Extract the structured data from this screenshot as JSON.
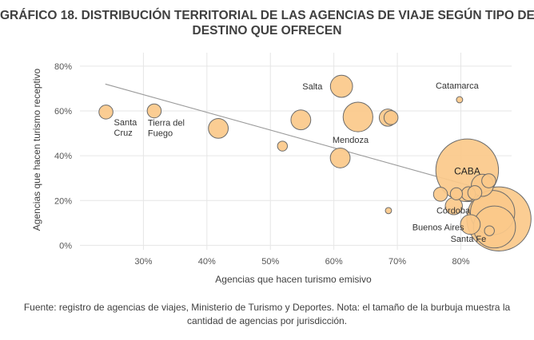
{
  "title_line1": "GRÁFICO 18. DISTRIBUCIÓN TERRITORIAL DE LAS AGENCIAS DE VIAJE SEGÚN TIPO DE",
  "title_line2": "DESTINO QUE OFRECEN",
  "source_line1": "Fuente: registro de agencias de viajes, Ministerio de Turismo y Deportes. Nota: el tamaño de la burbuja muestra la",
  "source_line2": "cantidad de agencias por jurisdicción.",
  "chart_data": {
    "type": "scatter",
    "subtype": "bubble",
    "xlabel": "Agencias que hacen turismo emisivo",
    "ylabel": "Agencias que hacen turismo receptivo",
    "xlim": [
      0.2,
      0.88
    ],
    "ylim": [
      -0.02,
      0.86
    ],
    "x_ticks": [
      0.3,
      0.4,
      0.5,
      0.6,
      0.7,
      0.8
    ],
    "x_tick_labels": [
      "30%",
      "40%",
      "50%",
      "60%",
      "70%",
      "80%"
    ],
    "y_ticks": [
      0.0,
      0.2,
      0.4,
      0.6,
      0.8
    ],
    "y_tick_labels": [
      "0%",
      "20%",
      "40%",
      "60%",
      "80%"
    ],
    "grid": "vertical and horizontal",
    "bubble_color": "#fbc98a",
    "bubble_stroke": "#6b6b6b",
    "trendline": {
      "color": "#9a9a9a",
      "x": [
        0.24,
        0.86
      ],
      "y": [
        0.72,
        0.23
      ]
    },
    "points": [
      {
        "x": 0.241,
        "y": 0.595,
        "size": 2,
        "label": "Santa\nCruz",
        "label_pos": "below-right"
      },
      {
        "x": 0.317,
        "y": 0.6,
        "size": 2,
        "label": "Tierra del\nFuego",
        "label_pos": "below"
      },
      {
        "x": 0.418,
        "y": 0.522,
        "size": 4,
        "label": ""
      },
      {
        "x": 0.519,
        "y": 0.443,
        "size": 1,
        "label": ""
      },
      {
        "x": 0.548,
        "y": 0.56,
        "size": 4,
        "label": ""
      },
      {
        "x": 0.612,
        "y": 0.71,
        "size": 5,
        "label": "Salta",
        "label_pos": "left"
      },
      {
        "x": 0.61,
        "y": 0.39,
        "size": 4,
        "label": ""
      },
      {
        "x": 0.638,
        "y": 0.573,
        "size": 9,
        "label": "Mendoza",
        "label_pos": "below"
      },
      {
        "x": 0.685,
        "y": 0.57,
        "size": 3,
        "label": ""
      },
      {
        "x": 0.69,
        "y": 0.57,
        "size": 2,
        "label": ""
      },
      {
        "x": 0.686,
        "y": 0.155,
        "size": 0.4,
        "label": ""
      },
      {
        "x": 0.798,
        "y": 0.65,
        "size": 0.4,
        "label": "Catamarca",
        "label_pos": "above"
      },
      {
        "x": 0.768,
        "y": 0.228,
        "size": 2,
        "label": ""
      },
      {
        "x": 0.793,
        "y": 0.23,
        "size": 1.5,
        "label": ""
      },
      {
        "x": 0.789,
        "y": 0.175,
        "size": 3,
        "label": ""
      },
      {
        "x": 0.812,
        "y": 0.23,
        "size": 2,
        "label": ""
      },
      {
        "x": 0.822,
        "y": 0.235,
        "size": 2,
        "label": ""
      },
      {
        "x": 0.834,
        "y": 0.268,
        "size": 5,
        "label": ""
      },
      {
        "x": 0.844,
        "y": 0.288,
        "size": 2,
        "label": ""
      },
      {
        "x": 0.81,
        "y": 0.335,
        "size": 40,
        "label": "CABA",
        "label_pos": "center"
      },
      {
        "x": 0.85,
        "y": 0.146,
        "size": 20,
        "label": "Córdoba",
        "label_pos": "left"
      },
      {
        "x": 0.86,
        "y": 0.118,
        "size": 42,
        "label": "",
        "label_pos": ""
      },
      {
        "x": 0.853,
        "y": 0.082,
        "size": 18,
        "label": "Buenos Aires",
        "label_pos": "left"
      },
      {
        "x": 0.815,
        "y": 0.093,
        "size": 4,
        "label": ""
      },
      {
        "x": 0.845,
        "y": 0.065,
        "size": 1,
        "label": "Santa Fe",
        "label_pos": "below-left"
      }
    ]
  }
}
